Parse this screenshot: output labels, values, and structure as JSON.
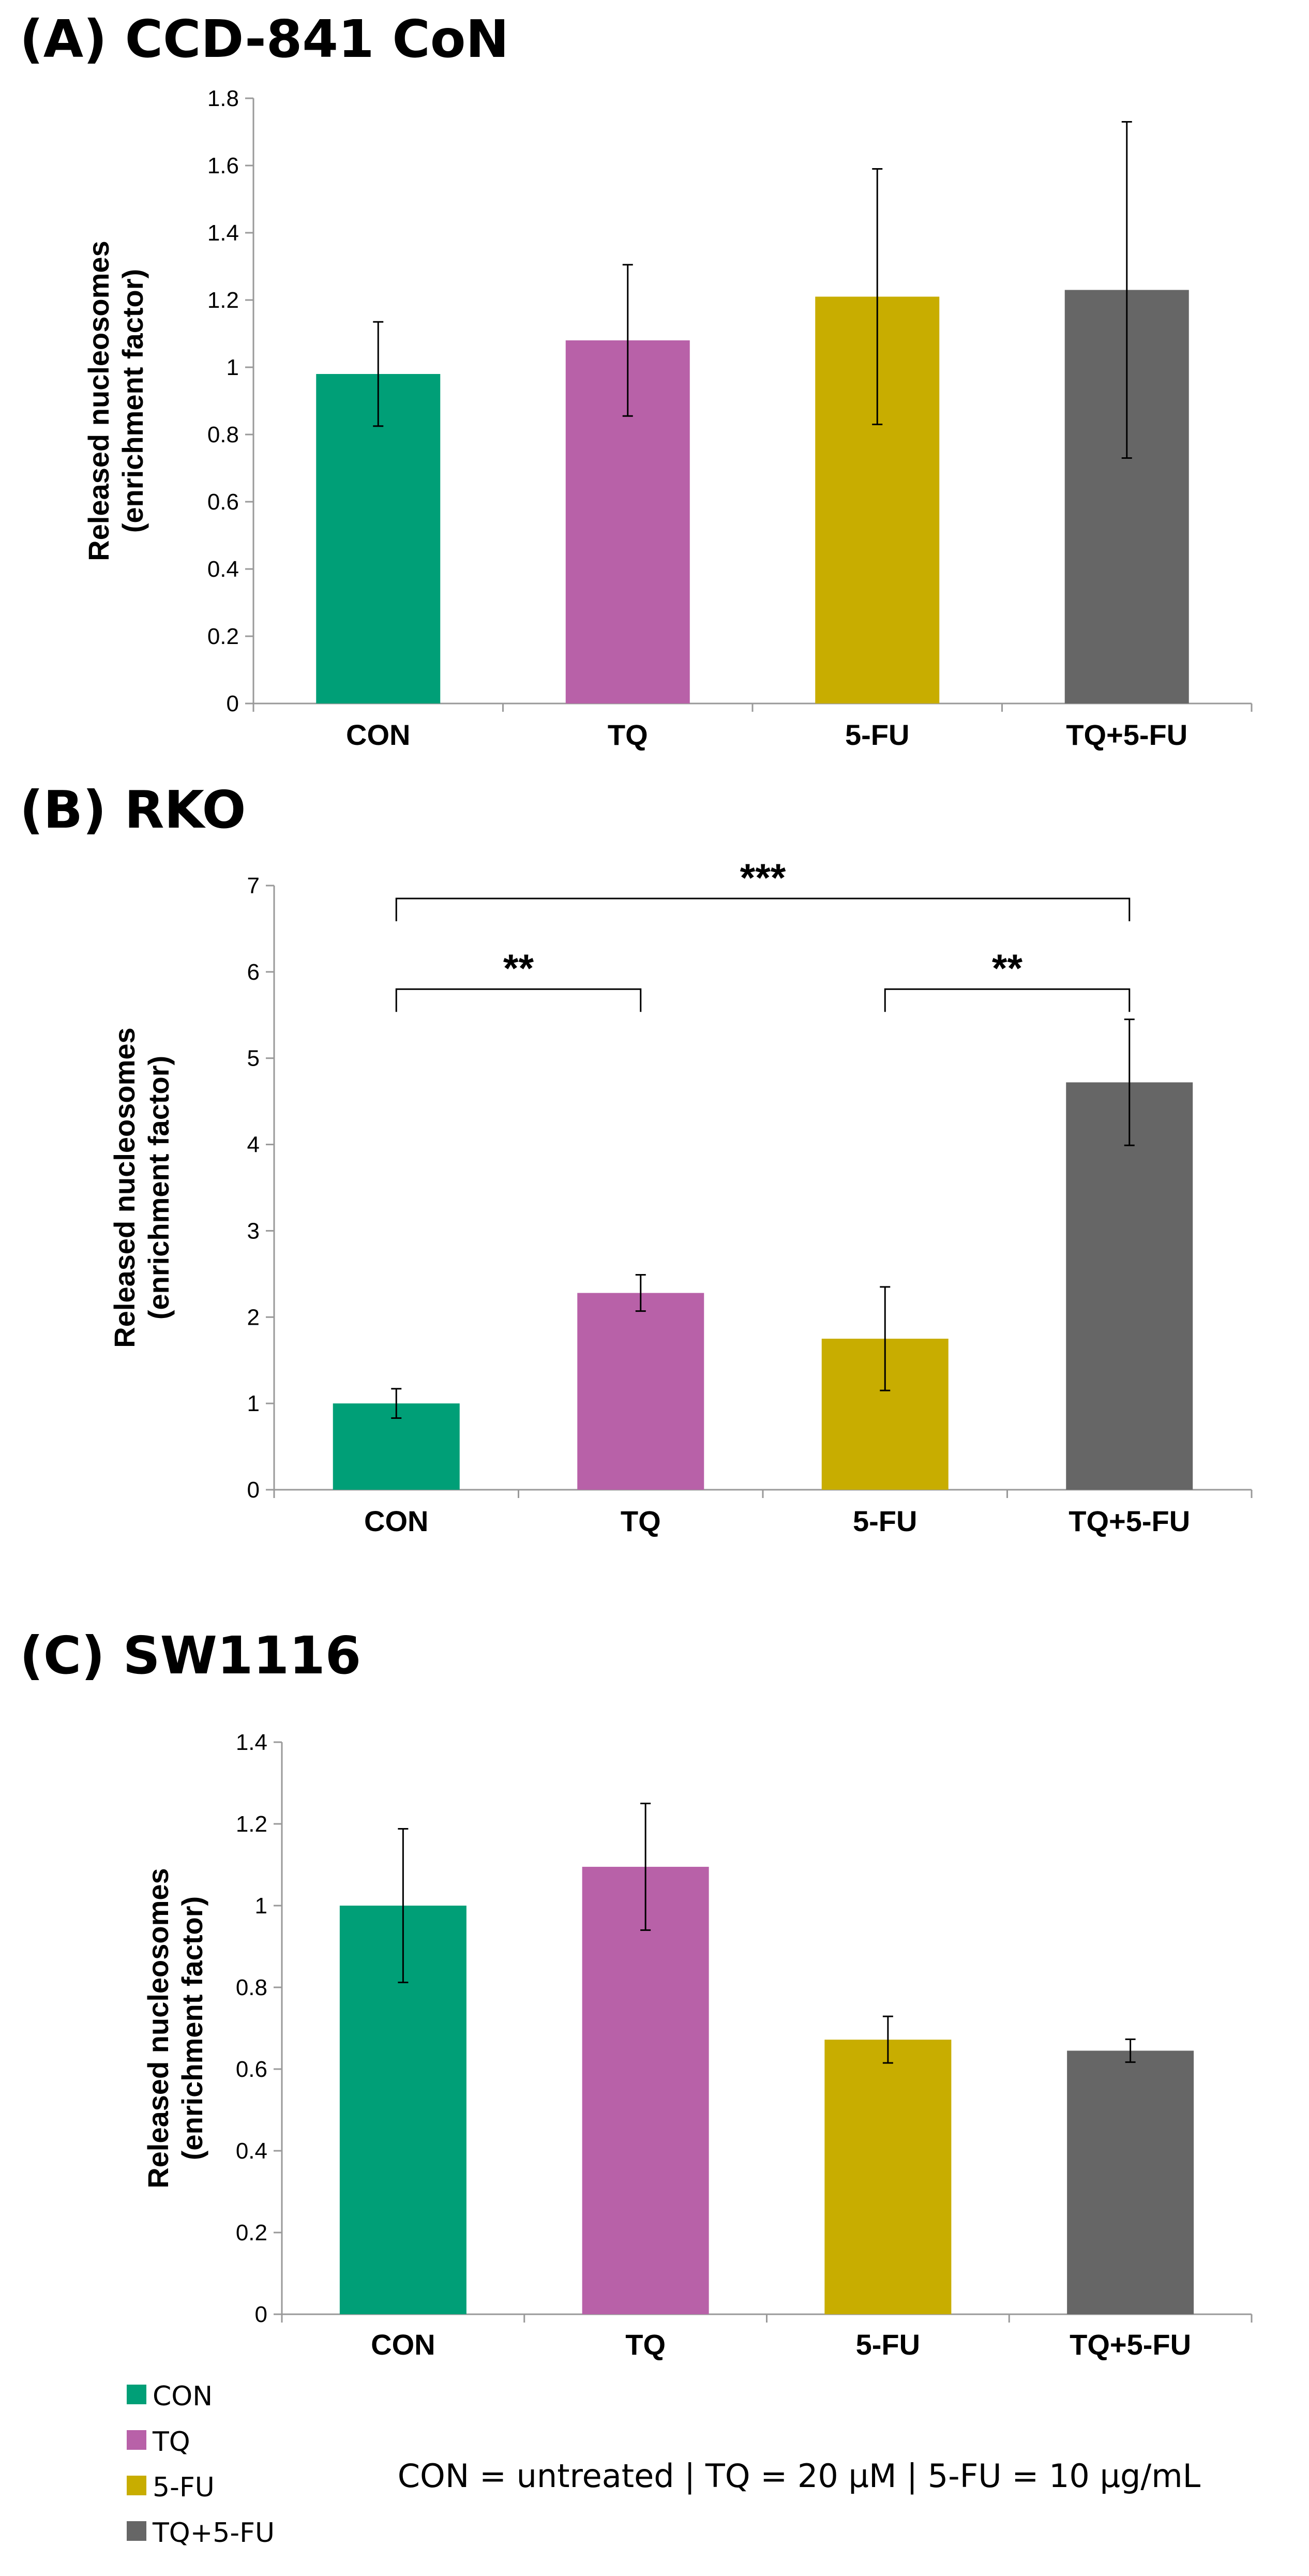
{
  "colors": {
    "CON": "#009f77",
    "TQ": "#b861a8",
    "5-FU": "#c8ad00",
    "TQ+5-FU": "#666666"
  },
  "chart_data": [
    {
      "type": "bar",
      "title": "(A)  CCD-841 CoN",
      "ylabel_lines": [
        "Released nucleosomes",
        "(enrichment factor)"
      ],
      "categories": [
        "CON",
        "TQ",
        "5-FU",
        "TQ+5-FU"
      ],
      "values": [
        0.98,
        1.08,
        1.21,
        1.23
      ],
      "errors": [
        0.155,
        0.225,
        0.38,
        0.5
      ],
      "ylim": [
        0,
        1.8
      ],
      "yticks": [
        0,
        0.2,
        0.4,
        0.6,
        0.8,
        1,
        1.2,
        1.4,
        1.6,
        1.8
      ],
      "ytick_labels": [
        "0",
        "0.2",
        "0.4",
        "0.6",
        "0.8",
        "1",
        "1.2",
        "1.4",
        "1.6",
        "1.8"
      ],
      "significance": []
    },
    {
      "type": "bar",
      "title": "(B)  RKO",
      "ylabel_lines": [
        "Released nucleosomes",
        "(enrichment factor)"
      ],
      "categories": [
        "CON",
        "TQ",
        "5-FU",
        "TQ+5-FU"
      ],
      "values": [
        1.0,
        2.28,
        1.75,
        4.72
      ],
      "errors": [
        0.17,
        0.21,
        0.6,
        0.73
      ],
      "ylim": [
        0,
        7
      ],
      "yticks": [
        0,
        1,
        2,
        3,
        4,
        5,
        6,
        7
      ],
      "ytick_labels": [
        "0",
        "1",
        "2",
        "3",
        "4",
        "5",
        "6",
        "7"
      ],
      "significance": [
        {
          "from": 0,
          "to": 3,
          "label": "***",
          "y": 6.85
        },
        {
          "from": 0,
          "to": 1,
          "label": "**",
          "y": 5.8
        },
        {
          "from": 2,
          "to": 3,
          "label": "**",
          "y": 5.8
        }
      ]
    },
    {
      "type": "bar",
      "title": "(C)  SW1116",
      "ylabel_lines": [
        "Released nucleosomes",
        "(enrichment factor)"
      ],
      "categories": [
        "CON",
        "TQ",
        "5-FU",
        "TQ+5-FU"
      ],
      "values": [
        1.0,
        1.095,
        0.672,
        0.645
      ],
      "errors": [
        0.188,
        0.155,
        0.057,
        0.028
      ],
      "ylim": [
        0,
        1.4
      ],
      "yticks": [
        0,
        0.2,
        0.4,
        0.6,
        0.8,
        1,
        1.2,
        1.4
      ],
      "ytick_labels": [
        "0",
        "0.2",
        "0.4",
        "0.6",
        "0.8",
        "1",
        "1.2",
        "1.4"
      ],
      "significance": []
    }
  ],
  "legend": {
    "position": "bottom-left",
    "entries": [
      "CON",
      "TQ",
      "5-FU",
      "TQ+5-FU"
    ]
  },
  "footnote": "CON = untreated  |  TQ = 20 µM  |   5-FU = 10 µg/mL"
}
